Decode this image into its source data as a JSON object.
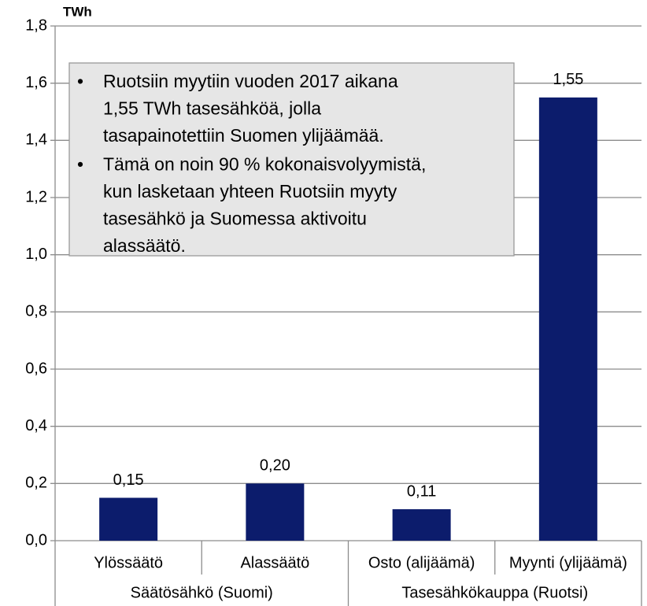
{
  "chart_data": {
    "type": "bar",
    "y_unit_label": "TWh",
    "categories": [
      "Ylössäätö",
      "Alassäätö",
      "Osto (alijäämä)",
      "Myynti (ylijäämä)"
    ],
    "category_groups": [
      "Säätösähkö (Suomi)",
      "Tasesähkökauppa (Ruotsi)"
    ],
    "values": [
      0.15,
      0.2,
      0.11,
      1.55
    ],
    "value_labels": [
      "0,15",
      "0,20",
      "0,11",
      "1,55"
    ],
    "color": "#0c1c6c",
    "ylim": [
      0,
      1.8
    ],
    "yticks": [
      {
        "value": 0,
        "label": "0,0"
      },
      {
        "value": 0.2,
        "label": "0,2"
      },
      {
        "value": 0.4,
        "label": "0,4"
      },
      {
        "value": 0.6,
        "label": "0,6"
      },
      {
        "value": 0.8,
        "label": "0,8"
      },
      {
        "value": 1.0,
        "label": "1,0"
      },
      {
        "value": 1.2,
        "label": "1,2"
      },
      {
        "value": 1.4,
        "label": "1,4"
      },
      {
        "value": 1.6,
        "label": "1,6"
      },
      {
        "value": 1.8,
        "label": "1,8"
      }
    ],
    "grid": true,
    "annotation": [
      [
        "Ruotsiin myytiin vuoden 2017 aikana",
        "1,55 TWh tasesähköä, jolla",
        "tasapainotettiin Suomen ylijäämää."
      ],
      [
        "Tämä on noin 90 % kokonaisvolyymistä,",
        "kun lasketaan yhteen Ruotsiin myyty",
        "tasesähkö ja Suomessa aktivoitu",
        "alassäätö."
      ]
    ]
  }
}
